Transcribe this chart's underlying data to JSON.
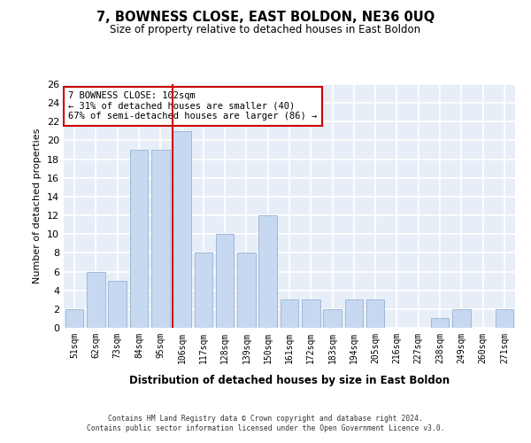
{
  "title1": "7, BOWNESS CLOSE, EAST BOLDON, NE36 0UQ",
  "title2": "Size of property relative to detached houses in East Boldon",
  "xlabel": "Distribution of detached houses by size in East Boldon",
  "ylabel": "Number of detached properties",
  "categories": [
    "51sqm",
    "62sqm",
    "73sqm",
    "84sqm",
    "95sqm",
    "106sqm",
    "117sqm",
    "128sqm",
    "139sqm",
    "150sqm",
    "161sqm",
    "172sqm",
    "183sqm",
    "194sqm",
    "205sqm",
    "216sqm",
    "227sqm",
    "238sqm",
    "249sqm",
    "260sqm",
    "271sqm"
  ],
  "values": [
    2,
    6,
    5,
    19,
    19,
    21,
    8,
    10,
    8,
    12,
    3,
    3,
    2,
    3,
    3,
    0,
    0,
    1,
    2,
    0,
    2
  ],
  "bar_color": "#c6d9f0",
  "bar_edge_color": "#a0b8d8",
  "vline_color": "#cc0000",
  "vline_x_index": 5,
  "annotation_text": "7 BOWNESS CLOSE: 102sqm\n← 31% of detached houses are smaller (40)\n67% of semi-detached houses are larger (86) →",
  "annotation_box_color": "#ffffff",
  "annotation_box_edge": "#cc0000",
  "ylim": [
    0,
    26
  ],
  "yticks": [
    0,
    2,
    4,
    6,
    8,
    10,
    12,
    14,
    16,
    18,
    20,
    22,
    24,
    26
  ],
  "bg_color": "#e8eef8",
  "grid_color": "#ffffff",
  "footer1": "Contains HM Land Registry data © Crown copyright and database right 2024.",
  "footer2": "Contains public sector information licensed under the Open Government Licence v3.0."
}
